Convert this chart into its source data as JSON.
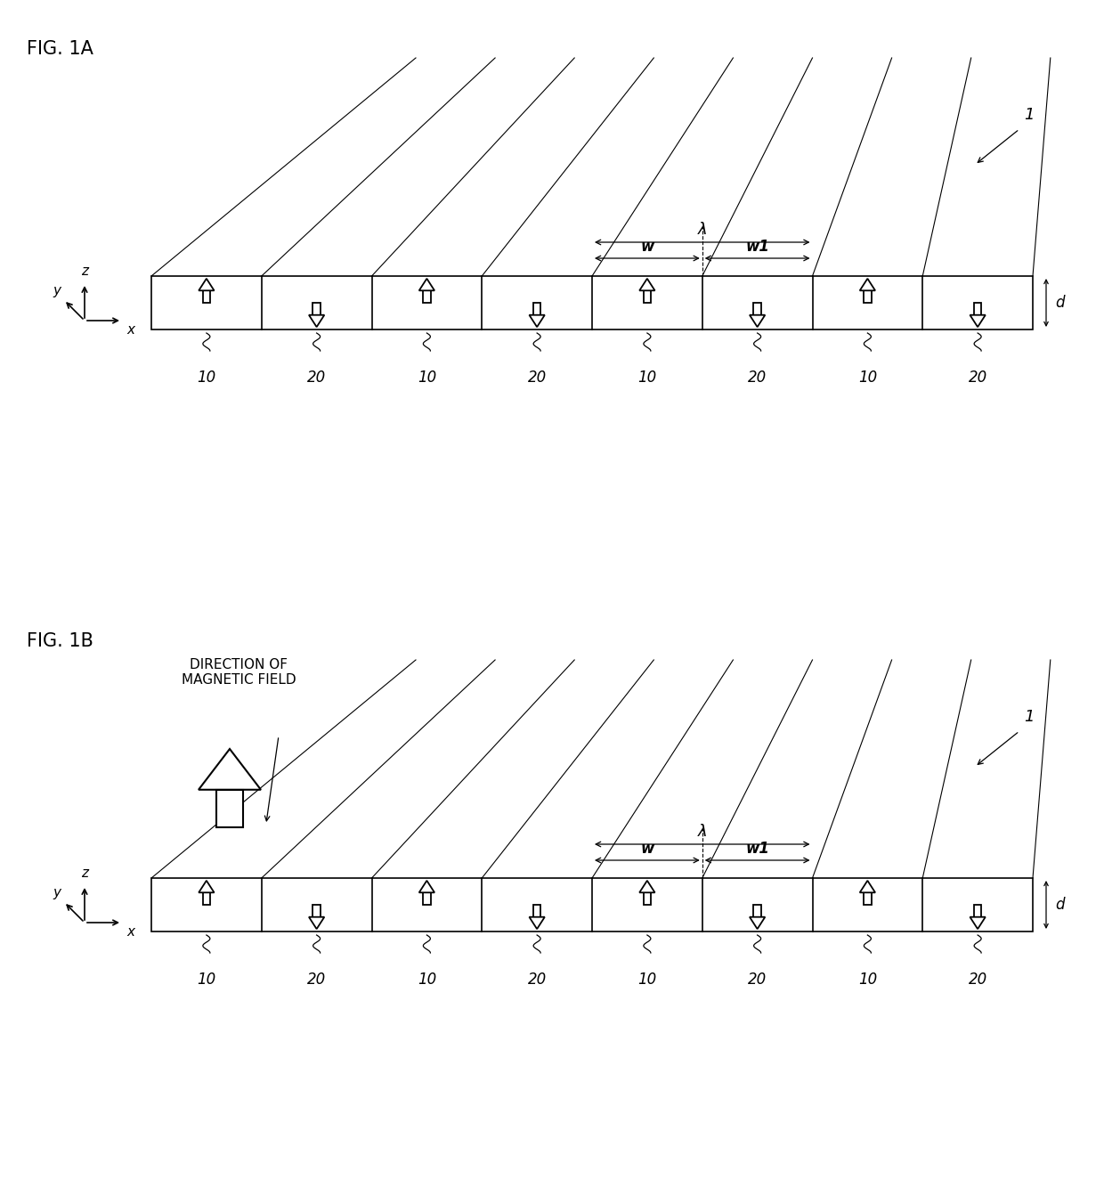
{
  "fig_width": 12.4,
  "fig_height": 13.52,
  "background_color": "#ffffff",
  "fig1a_label": "FIG. 1A",
  "fig1b_label": "FIG. 1B",
  "label_1": "1",
  "label_d": "d",
  "label_lambda": "λ",
  "label_w": "w",
  "label_w1": "w1",
  "label_10": "10",
  "label_20": "20",
  "dir_mag_field": "DIRECTION OF\nMAGNETIC FIELD"
}
